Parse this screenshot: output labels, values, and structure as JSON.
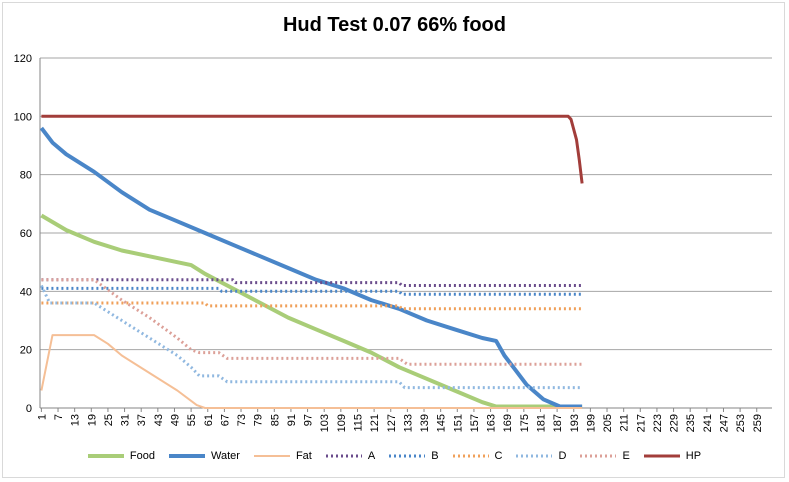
{
  "chart_data": {
    "type": "line",
    "title": "Hud Test 0.07  66% food",
    "xlabel": "",
    "ylabel": "",
    "ylim": [
      0,
      120
    ],
    "yticks": [
      0,
      20,
      40,
      60,
      80,
      100,
      120
    ],
    "xlim": [
      1,
      264
    ],
    "xticks": [
      1,
      7,
      13,
      19,
      25,
      31,
      37,
      43,
      49,
      55,
      61,
      67,
      73,
      79,
      85,
      91,
      97,
      103,
      109,
      115,
      121,
      127,
      133,
      139,
      145,
      151,
      157,
      163,
      169,
      175,
      181,
      187,
      193,
      199,
      205,
      211,
      217,
      223,
      229,
      235,
      241,
      247,
      253,
      259
    ],
    "grid": "horizontal",
    "legend_position": "bottom",
    "series": [
      {
        "name": "Food",
        "color": "#a9cd78",
        "style": "solid",
        "width": 4,
        "points": [
          [
            1,
            66
          ],
          [
            10,
            61
          ],
          [
            20,
            57
          ],
          [
            30,
            54
          ],
          [
            40,
            52
          ],
          [
            50,
            50
          ],
          [
            55,
            49
          ],
          [
            60,
            46
          ],
          [
            70,
            41
          ],
          [
            80,
            36
          ],
          [
            90,
            31
          ],
          [
            100,
            27
          ],
          [
            110,
            23
          ],
          [
            120,
            19
          ],
          [
            130,
            14
          ],
          [
            140,
            10
          ],
          [
            150,
            6
          ],
          [
            160,
            2
          ],
          [
            165,
            0.5
          ],
          [
            190,
            0.5
          ],
          [
            196,
            0.5
          ]
        ]
      },
      {
        "name": "Water",
        "color": "#4a86c8",
        "style": "solid",
        "width": 4,
        "points": [
          [
            1,
            96
          ],
          [
            5,
            91
          ],
          [
            10,
            87
          ],
          [
            20,
            81
          ],
          [
            30,
            74
          ],
          [
            40,
            68
          ],
          [
            50,
            64
          ],
          [
            60,
            60
          ],
          [
            70,
            56
          ],
          [
            80,
            52
          ],
          [
            90,
            48
          ],
          [
            100,
            44
          ],
          [
            110,
            41
          ],
          [
            120,
            37
          ],
          [
            130,
            34
          ],
          [
            140,
            30
          ],
          [
            150,
            27
          ],
          [
            160,
            24
          ],
          [
            165,
            23
          ],
          [
            168,
            18
          ],
          [
            172,
            13
          ],
          [
            176,
            8
          ],
          [
            182,
            3
          ],
          [
            188,
            0.5
          ],
          [
            196,
            0.5
          ]
        ]
      },
      {
        "name": "Fat",
        "color": "#f5bf96",
        "style": "solid",
        "width": 2,
        "points": [
          [
            1,
            6
          ],
          [
            5,
            25
          ],
          [
            10,
            25
          ],
          [
            20,
            25
          ],
          [
            25,
            22
          ],
          [
            30,
            18
          ],
          [
            40,
            12
          ],
          [
            50,
            6
          ],
          [
            57,
            1
          ],
          [
            60,
            0
          ],
          [
            196,
            0
          ]
        ]
      },
      {
        "name": "A",
        "color": "#6a4c8c",
        "style": "dotted",
        "width": 3,
        "points": [
          [
            1,
            44
          ],
          [
            70,
            44
          ],
          [
            71,
            43
          ],
          [
            130,
            43
          ],
          [
            131,
            42
          ],
          [
            196,
            42
          ]
        ]
      },
      {
        "name": "B",
        "color": "#4a86c8",
        "style": "dotted",
        "width": 3,
        "points": [
          [
            1,
            41
          ],
          [
            65,
            41
          ],
          [
            66,
            40
          ],
          [
            130,
            40
          ],
          [
            131,
            39
          ],
          [
            196,
            39
          ]
        ]
      },
      {
        "name": "C",
        "color": "#f0a05a",
        "style": "dotted",
        "width": 3,
        "points": [
          [
            1,
            36
          ],
          [
            60,
            36
          ],
          [
            61,
            35
          ],
          [
            130,
            35
          ],
          [
            131,
            34
          ],
          [
            196,
            34
          ]
        ]
      },
      {
        "name": "D",
        "color": "#90b8e0",
        "style": "dotted",
        "width": 3,
        "points": [
          [
            1,
            42
          ],
          [
            4,
            36
          ],
          [
            20,
            36
          ],
          [
            30,
            30
          ],
          [
            40,
            24
          ],
          [
            50,
            18
          ],
          [
            55,
            14
          ],
          [
            58,
            11
          ],
          [
            65,
            11
          ],
          [
            68,
            9
          ],
          [
            130,
            9
          ],
          [
            132,
            7
          ],
          [
            196,
            7
          ]
        ]
      },
      {
        "name": "E",
        "color": "#dca098",
        "style": "dotted",
        "width": 3,
        "points": [
          [
            1,
            44
          ],
          [
            20,
            44
          ],
          [
            30,
            37
          ],
          [
            40,
            31
          ],
          [
            50,
            24
          ],
          [
            55,
            20
          ],
          [
            58,
            19
          ],
          [
            65,
            19
          ],
          [
            68,
            17
          ],
          [
            130,
            17
          ],
          [
            133,
            15
          ],
          [
            196,
            15
          ]
        ]
      },
      {
        "name": "HP",
        "color": "#a23d3a",
        "style": "solid",
        "width": 3,
        "points": [
          [
            1,
            100
          ],
          [
            191,
            100
          ],
          [
            192,
            99
          ],
          [
            194,
            92
          ],
          [
            195,
            85
          ],
          [
            196,
            77
          ]
        ]
      }
    ]
  }
}
